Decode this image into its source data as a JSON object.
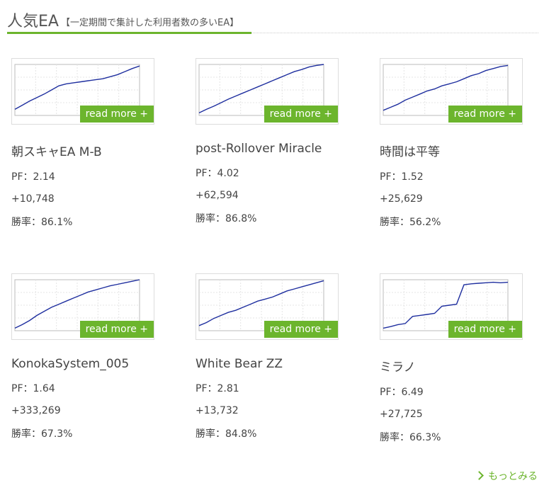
{
  "header": {
    "title": "人気EA",
    "subtitle": "【一定期間で集計した利用者数の多いEA】",
    "accent_color": "#6cb52d"
  },
  "cards": [
    {
      "name": "朝スキャEA M-B",
      "pf": "PF：2.14",
      "profit": "+10,748",
      "winrate": "勝率：86.1%",
      "read_more": "read more +",
      "curve": [
        0.12,
        0.2,
        0.28,
        0.35,
        0.42,
        0.5,
        0.58,
        0.62,
        0.64,
        0.66,
        0.68,
        0.7,
        0.72,
        0.76,
        0.8,
        0.86,
        0.92,
        0.97
      ]
    },
    {
      "name": "post-Rollover Miracle",
      "pf": "PF：4.02",
      "profit": "+62,594",
      "winrate": "勝率：86.8%",
      "read_more": "read more +",
      "curve": [
        0.05,
        0.12,
        0.18,
        0.25,
        0.32,
        0.38,
        0.44,
        0.5,
        0.56,
        0.62,
        0.68,
        0.74,
        0.8,
        0.86,
        0.9,
        0.95,
        0.98,
        1.0
      ]
    },
    {
      "name": "時間は平等",
      "pf": "PF：1.52",
      "profit": "+25,629",
      "winrate": "勝率：56.2%",
      "read_more": "read more +",
      "curve": [
        0.1,
        0.16,
        0.22,
        0.3,
        0.36,
        0.42,
        0.48,
        0.52,
        0.58,
        0.62,
        0.66,
        0.72,
        0.78,
        0.82,
        0.88,
        0.92,
        0.96,
        0.98
      ]
    },
    {
      "name": "KonokaSystem_005",
      "pf": "PF：1.64",
      "profit": "+333,269",
      "winrate": "勝率：67.3%",
      "read_more": "read more +",
      "curve": [
        0.05,
        0.12,
        0.2,
        0.3,
        0.38,
        0.46,
        0.52,
        0.58,
        0.64,
        0.7,
        0.76,
        0.8,
        0.84,
        0.88,
        0.91,
        0.94,
        0.97,
        1.0
      ]
    },
    {
      "name": "White Bear ZZ",
      "pf": "PF：2.81",
      "profit": "+13,732",
      "winrate": "勝率：84.8%",
      "read_more": "read more +",
      "curve": [
        0.1,
        0.16,
        0.24,
        0.3,
        0.36,
        0.4,
        0.46,
        0.52,
        0.58,
        0.62,
        0.66,
        0.72,
        0.78,
        0.82,
        0.86,
        0.9,
        0.94,
        0.98
      ]
    },
    {
      "name": "ミラノ",
      "pf": "PF：6.49",
      "profit": "+27,725",
      "winrate": "勝率：66.3%",
      "read_more": "read more +",
      "curve": [
        0.05,
        0.08,
        0.12,
        0.14,
        0.28,
        0.3,
        0.32,
        0.34,
        0.48,
        0.5,
        0.52,
        0.9,
        0.92,
        0.93,
        0.94,
        0.95,
        0.94,
        0.95
      ]
    }
  ],
  "more_link": "もっとみる"
}
